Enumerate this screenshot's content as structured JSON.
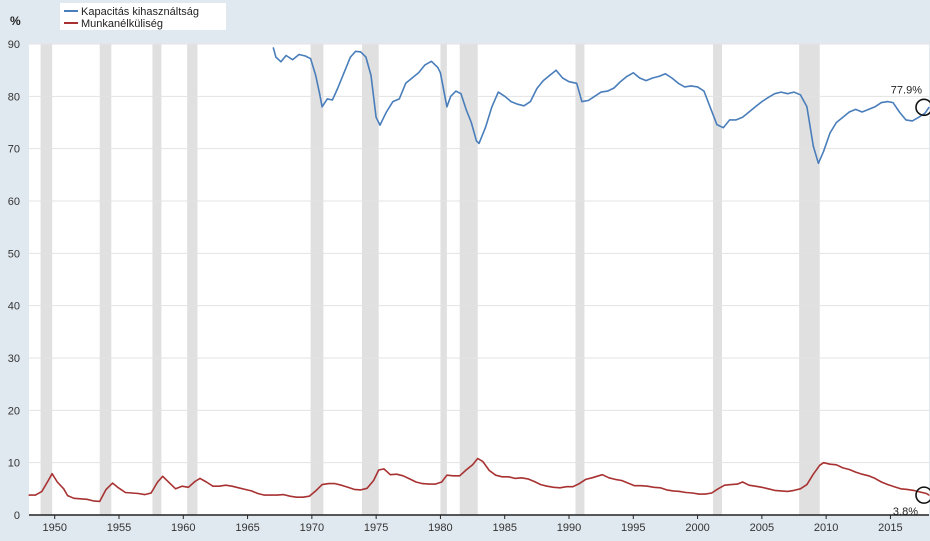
{
  "chart_data": {
    "type": "line",
    "ylabel": "%",
    "ylim": [
      0,
      90
    ],
    "xlim": [
      1948,
      2018
    ],
    "y_ticks": [
      "0",
      "10",
      "20",
      "30",
      "40",
      "50",
      "60",
      "70",
      "80",
      "90"
    ],
    "x_ticks": [
      "1950",
      "1955",
      "1960",
      "1965",
      "1970",
      "1975",
      "1980",
      "1985",
      "1990",
      "1995",
      "2000",
      "2005",
      "2010",
      "2015"
    ],
    "grid": true,
    "legend_position": "top-left",
    "recessions": [
      [
        1948.9,
        1949.8
      ],
      [
        1953.5,
        1954.4
      ],
      [
        1957.6,
        1958.3
      ],
      [
        1960.3,
        1961.1
      ],
      [
        1969.9,
        1970.9
      ],
      [
        1973.9,
        1975.2
      ],
      [
        1980.0,
        1980.5
      ],
      [
        1981.5,
        1982.9
      ],
      [
        1990.5,
        1991.2
      ],
      [
        2001.2,
        2001.9
      ],
      [
        2007.9,
        2009.5
      ]
    ],
    "series": [
      {
        "name": "Kapacitás kihasználtság",
        "color": "#4a7ebb",
        "points": [
          [
            1967.0,
            89.3
          ],
          [
            1967.2,
            87.5
          ],
          [
            1967.6,
            86.6
          ],
          [
            1968.0,
            87.8
          ],
          [
            1968.5,
            87.0
          ],
          [
            1969.0,
            88.0
          ],
          [
            1969.5,
            87.7
          ],
          [
            1969.9,
            87.2
          ],
          [
            1970.3,
            84.0
          ],
          [
            1970.6,
            80.5
          ],
          [
            1970.8,
            78.0
          ],
          [
            1971.2,
            79.5
          ],
          [
            1971.6,
            79.3
          ],
          [
            1972.0,
            81.5
          ],
          [
            1972.5,
            84.5
          ],
          [
            1973.0,
            87.5
          ],
          [
            1973.4,
            88.6
          ],
          [
            1973.8,
            88.5
          ],
          [
            1974.2,
            87.5
          ],
          [
            1974.6,
            84.0
          ],
          [
            1975.0,
            76.0
          ],
          [
            1975.3,
            74.5
          ],
          [
            1975.8,
            77.0
          ],
          [
            1976.3,
            79.0
          ],
          [
            1976.8,
            79.5
          ],
          [
            1977.3,
            82.5
          ],
          [
            1977.8,
            83.5
          ],
          [
            1978.3,
            84.5
          ],
          [
            1978.8,
            86.0
          ],
          [
            1979.3,
            86.7
          ],
          [
            1979.8,
            85.5
          ],
          [
            1980.0,
            84.5
          ],
          [
            1980.5,
            78.0
          ],
          [
            1980.8,
            80.0
          ],
          [
            1981.2,
            81.0
          ],
          [
            1981.6,
            80.5
          ],
          [
            1982.0,
            77.5
          ],
          [
            1982.4,
            75.0
          ],
          [
            1982.8,
            71.5
          ],
          [
            1983.0,
            71.0
          ],
          [
            1983.5,
            74.0
          ],
          [
            1984.0,
            78.0
          ],
          [
            1984.5,
            80.8
          ],
          [
            1985.0,
            80.0
          ],
          [
            1985.5,
            79.0
          ],
          [
            1986.0,
            78.5
          ],
          [
            1986.5,
            78.2
          ],
          [
            1987.0,
            79.0
          ],
          [
            1987.5,
            81.5
          ],
          [
            1988.0,
            83.0
          ],
          [
            1988.5,
            84.0
          ],
          [
            1989.0,
            85.0
          ],
          [
            1989.5,
            83.5
          ],
          [
            1990.0,
            82.8
          ],
          [
            1990.6,
            82.5
          ],
          [
            1991.0,
            79.0
          ],
          [
            1991.5,
            79.2
          ],
          [
            1992.0,
            80.0
          ],
          [
            1992.5,
            80.8
          ],
          [
            1993.0,
            81.0
          ],
          [
            1993.5,
            81.6
          ],
          [
            1994.0,
            82.8
          ],
          [
            1994.5,
            83.8
          ],
          [
            1995.0,
            84.5
          ],
          [
            1995.5,
            83.5
          ],
          [
            1996.0,
            83.0
          ],
          [
            1996.5,
            83.5
          ],
          [
            1997.0,
            83.8
          ],
          [
            1997.5,
            84.3
          ],
          [
            1998.0,
            83.5
          ],
          [
            1998.5,
            82.5
          ],
          [
            1999.0,
            81.8
          ],
          [
            1999.5,
            82.0
          ],
          [
            2000.0,
            81.8
          ],
          [
            2000.5,
            81.0
          ],
          [
            2001.0,
            77.8
          ],
          [
            2001.5,
            74.6
          ],
          [
            2002.0,
            74.0
          ],
          [
            2002.5,
            75.5
          ],
          [
            2003.0,
            75.5
          ],
          [
            2003.5,
            76.0
          ],
          [
            2004.0,
            77.0
          ],
          [
            2004.5,
            78.0
          ],
          [
            2005.0,
            79.0
          ],
          [
            2005.5,
            79.8
          ],
          [
            2006.0,
            80.5
          ],
          [
            2006.5,
            80.8
          ],
          [
            2007.0,
            80.5
          ],
          [
            2007.5,
            80.8
          ],
          [
            2008.0,
            80.3
          ],
          [
            2008.5,
            78.0
          ],
          [
            2009.0,
            70.5
          ],
          [
            2009.4,
            67.2
          ],
          [
            2009.8,
            69.5
          ],
          [
            2010.3,
            73.0
          ],
          [
            2010.8,
            75.0
          ],
          [
            2011.3,
            76.0
          ],
          [
            2011.8,
            77.0
          ],
          [
            2012.3,
            77.5
          ],
          [
            2012.8,
            77.0
          ],
          [
            2013.3,
            77.5
          ],
          [
            2013.8,
            78.0
          ],
          [
            2014.3,
            78.8
          ],
          [
            2014.8,
            79.0
          ],
          [
            2015.2,
            78.8
          ],
          [
            2015.7,
            77.0
          ],
          [
            2016.2,
            75.5
          ],
          [
            2016.7,
            75.3
          ],
          [
            2017.2,
            76.0
          ],
          [
            2017.7,
            76.8
          ],
          [
            2018.0,
            77.9
          ]
        ],
        "last_label": "77.9%"
      },
      {
        "name": "Munkanélküliség",
        "color": "#a83232",
        "points": [
          [
            1948.0,
            3.8
          ],
          [
            1948.5,
            3.8
          ],
          [
            1949.0,
            4.5
          ],
          [
            1949.5,
            6.6
          ],
          [
            1949.8,
            7.9
          ],
          [
            1950.2,
            6.3
          ],
          [
            1950.7,
            5.0
          ],
          [
            1951.0,
            3.7
          ],
          [
            1951.5,
            3.2
          ],
          [
            1952.0,
            3.1
          ],
          [
            1952.5,
            3.0
          ],
          [
            1953.0,
            2.7
          ],
          [
            1953.5,
            2.6
          ],
          [
            1954.0,
            4.9
          ],
          [
            1954.5,
            6.1
          ],
          [
            1954.9,
            5.3
          ],
          [
            1955.5,
            4.3
          ],
          [
            1956.0,
            4.2
          ],
          [
            1956.5,
            4.1
          ],
          [
            1957.0,
            3.9
          ],
          [
            1957.5,
            4.2
          ],
          [
            1958.0,
            6.3
          ],
          [
            1958.4,
            7.4
          ],
          [
            1958.9,
            6.2
          ],
          [
            1959.4,
            5.0
          ],
          [
            1959.9,
            5.5
          ],
          [
            1960.4,
            5.3
          ],
          [
            1960.9,
            6.4
          ],
          [
            1961.3,
            7.0
          ],
          [
            1961.8,
            6.3
          ],
          [
            1962.3,
            5.5
          ],
          [
            1962.8,
            5.5
          ],
          [
            1963.3,
            5.7
          ],
          [
            1963.8,
            5.5
          ],
          [
            1964.3,
            5.2
          ],
          [
            1964.8,
            4.9
          ],
          [
            1965.3,
            4.6
          ],
          [
            1965.8,
            4.1
          ],
          [
            1966.3,
            3.8
          ],
          [
            1966.8,
            3.8
          ],
          [
            1967.3,
            3.8
          ],
          [
            1967.8,
            3.9
          ],
          [
            1968.3,
            3.6
          ],
          [
            1968.8,
            3.4
          ],
          [
            1969.3,
            3.4
          ],
          [
            1969.8,
            3.6
          ],
          [
            1970.3,
            4.6
          ],
          [
            1970.8,
            5.8
          ],
          [
            1971.3,
            6.0
          ],
          [
            1971.8,
            6.0
          ],
          [
            1972.3,
            5.7
          ],
          [
            1972.8,
            5.3
          ],
          [
            1973.3,
            4.9
          ],
          [
            1973.8,
            4.8
          ],
          [
            1974.3,
            5.1
          ],
          [
            1974.8,
            6.6
          ],
          [
            1975.2,
            8.6
          ],
          [
            1975.6,
            8.8
          ],
          [
            1976.1,
            7.7
          ],
          [
            1976.6,
            7.8
          ],
          [
            1977.1,
            7.5
          ],
          [
            1977.6,
            6.9
          ],
          [
            1978.1,
            6.3
          ],
          [
            1978.6,
            6.0
          ],
          [
            1979.1,
            5.9
          ],
          [
            1979.6,
            5.9
          ],
          [
            1980.1,
            6.3
          ],
          [
            1980.5,
            7.6
          ],
          [
            1981.0,
            7.5
          ],
          [
            1981.5,
            7.5
          ],
          [
            1982.0,
            8.6
          ],
          [
            1982.5,
            9.6
          ],
          [
            1982.9,
            10.8
          ],
          [
            1983.3,
            10.2
          ],
          [
            1983.8,
            8.5
          ],
          [
            1984.3,
            7.6
          ],
          [
            1984.8,
            7.3
          ],
          [
            1985.3,
            7.3
          ],
          [
            1985.8,
            7.0
          ],
          [
            1986.3,
            7.1
          ],
          [
            1986.8,
            6.9
          ],
          [
            1987.3,
            6.4
          ],
          [
            1987.8,
            5.8
          ],
          [
            1988.3,
            5.5
          ],
          [
            1988.8,
            5.3
          ],
          [
            1989.3,
            5.2
          ],
          [
            1989.8,
            5.4
          ],
          [
            1990.3,
            5.4
          ],
          [
            1990.8,
            6.0
          ],
          [
            1991.3,
            6.8
          ],
          [
            1991.8,
            7.1
          ],
          [
            1992.3,
            7.5
          ],
          [
            1992.6,
            7.7
          ],
          [
            1993.1,
            7.1
          ],
          [
            1993.6,
            6.8
          ],
          [
            1994.1,
            6.6
          ],
          [
            1994.6,
            6.1
          ],
          [
            1995.1,
            5.6
          ],
          [
            1995.6,
            5.6
          ],
          [
            1996.1,
            5.5
          ],
          [
            1996.6,
            5.3
          ],
          [
            1997.1,
            5.2
          ],
          [
            1997.6,
            4.8
          ],
          [
            1998.1,
            4.6
          ],
          [
            1998.6,
            4.5
          ],
          [
            1999.1,
            4.3
          ],
          [
            1999.6,
            4.2
          ],
          [
            2000.1,
            4.0
          ],
          [
            2000.6,
            4.0
          ],
          [
            2001.1,
            4.2
          ],
          [
            2001.6,
            5.0
          ],
          [
            2002.1,
            5.7
          ],
          [
            2002.6,
            5.8
          ],
          [
            2003.1,
            5.9
          ],
          [
            2003.5,
            6.3
          ],
          [
            2004.0,
            5.7
          ],
          [
            2004.5,
            5.5
          ],
          [
            2005.0,
            5.3
          ],
          [
            2005.5,
            5.0
          ],
          [
            2006.0,
            4.7
          ],
          [
            2006.5,
            4.6
          ],
          [
            2007.0,
            4.5
          ],
          [
            2007.5,
            4.7
          ],
          [
            2008.0,
            5.0
          ],
          [
            2008.5,
            5.8
          ],
          [
            2009.0,
            7.8
          ],
          [
            2009.5,
            9.5
          ],
          [
            2009.8,
            10.0
          ],
          [
            2010.3,
            9.7
          ],
          [
            2010.8,
            9.6
          ],
          [
            2011.3,
            9.0
          ],
          [
            2011.8,
            8.7
          ],
          [
            2012.3,
            8.2
          ],
          [
            2012.8,
            7.8
          ],
          [
            2013.3,
            7.5
          ],
          [
            2013.8,
            7.0
          ],
          [
            2014.3,
            6.3
          ],
          [
            2014.8,
            5.8
          ],
          [
            2015.3,
            5.4
          ],
          [
            2015.8,
            5.0
          ],
          [
            2016.3,
            4.9
          ],
          [
            2016.8,
            4.7
          ],
          [
            2017.3,
            4.4
          ],
          [
            2017.8,
            4.1
          ],
          [
            2018.0,
            3.8
          ]
        ],
        "last_label": "3.8%"
      }
    ]
  }
}
